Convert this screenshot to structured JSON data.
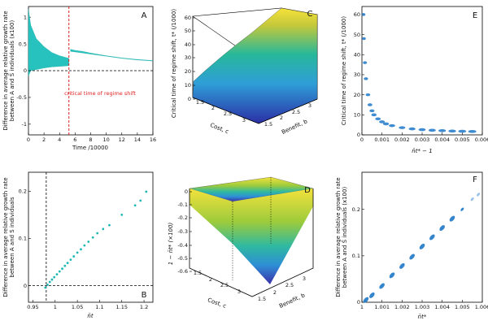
{
  "chart_data": [
    {
      "panel": "A",
      "type": "area",
      "title": "",
      "xlabel": "Time /10000",
      "ylabel": "Difference in average relative growth rate\nbetween A and S individuals (x100)",
      "xlim": [
        0,
        16
      ],
      "ylim": [
        -1.2,
        1.2
      ],
      "xticks": [
        "0",
        "2",
        "4",
        "6",
        "8",
        "10",
        "12",
        "14",
        "16"
      ],
      "yticks": [
        "-1",
        "-0.5",
        "0",
        "0.5",
        "1"
      ],
      "baseline": 0,
      "regime_shift_time": 5.2,
      "annotation": "critical time of regime shift",
      "series": [
        {
          "name": "band_upper",
          "x": [
            0,
            0.3,
            1,
            2,
            3,
            4,
            5,
            5.2,
            5.4,
            6,
            7,
            8,
            10,
            12,
            14,
            16
          ],
          "values": [
            1.15,
            0.85,
            0.6,
            0.45,
            0.34,
            0.28,
            0.24,
            0.23,
            0.4,
            0.38,
            0.36,
            0.33,
            0.28,
            0.24,
            0.21,
            0.19
          ]
        },
        {
          "name": "band_lower",
          "x": [
            0,
            0.3,
            1,
            2,
            3,
            4,
            5,
            5.2,
            5.4,
            6,
            7,
            8,
            10,
            12,
            14,
            16
          ],
          "values": [
            -0.1,
            0.0,
            0.02,
            0.05,
            0.07,
            0.08,
            0.09,
            0.1,
            0.36,
            0.35,
            0.33,
            0.31,
            0.27,
            0.23,
            0.2,
            0.18
          ]
        }
      ]
    },
    {
      "panel": "B",
      "type": "scatter",
      "xlabel": "n̄t",
      "ylabel": "Difference in average relative growth rate\nbetween A and S individuals",
      "xlim": [
        0.94,
        1.22
      ],
      "ylim": [
        -0.035,
        0.24
      ],
      "xticks": [
        "0.95",
        "1",
        "1.05",
        "1.1",
        "1.15",
        "1.2"
      ],
      "yticks": [
        "0",
        "0.1",
        "0.2"
      ],
      "vline_x": 0.98,
      "hline_y": 0,
      "x": [
        0.978,
        0.983,
        0.988,
        0.993,
        0.998,
        1.004,
        1.01,
        1.016,
        1.022,
        1.028,
        1.035,
        1.042,
        1.05,
        1.058,
        1.066,
        1.075,
        1.085,
        1.095,
        1.108,
        1.122,
        1.15,
        1.18,
        1.192,
        1.205
      ],
      "values": [
        -0.004,
        0.002,
        0.008,
        0.013,
        0.018,
        0.024,
        0.03,
        0.036,
        0.042,
        0.048,
        0.055,
        0.062,
        0.07,
        0.077,
        0.085,
        0.093,
        0.102,
        0.111,
        0.12,
        0.128,
        0.15,
        0.17,
        0.18,
        0.199
      ]
    },
    {
      "panel": "C",
      "type": "surface3d",
      "xlabel": "Cost, c",
      "ylabel": "Benefit, b",
      "zlabel": "Critical time of regime shift, t* (/1000)",
      "xticks": [
        "1.5",
        "2",
        "2.5",
        "3"
      ],
      "yticks": [
        "1.5",
        "2",
        "2.5",
        "3"
      ],
      "zticks": [
        "0",
        "10",
        "20",
        "30",
        "40",
        "50",
        "60"
      ],
      "zlim": [
        0,
        60
      ]
    },
    {
      "panel": "D",
      "type": "surface3d",
      "xlabel": "Cost, c",
      "ylabel": "Benefit, b",
      "zlabel": "1 − n̄t* (×100)",
      "xticks": [
        "1.5",
        "2",
        "2.5",
        "3"
      ],
      "yticks": [
        "1.5",
        "2",
        "2.5",
        "3"
      ],
      "zticks": [
        "0",
        "-0.1",
        "-0.2",
        "-0.3",
        "-0.4",
        "-0.5",
        "-0.6"
      ],
      "zlim": [
        -0.6,
        0
      ]
    },
    {
      "panel": "E",
      "type": "scatter",
      "xlabel": "n̄t* − 1",
      "ylabel": "Critical time of regime shift, t* (/1000)",
      "xlim": [
        0,
        0.006
      ],
      "ylim": [
        0,
        64
      ],
      "xticks": [
        "0",
        "0.001",
        "0.002",
        "0.003",
        "0.004",
        "0.005",
        "0.006"
      ],
      "yticks": [
        "0",
        "10",
        "20",
        "30",
        "40",
        "50",
        "60"
      ],
      "x": [
        8e-05,
        0.0001,
        0.00015,
        0.0002,
        0.0003,
        0.0004,
        0.0005,
        0.0006,
        0.0008,
        0.001,
        0.0012,
        0.0015,
        0.002,
        0.0025,
        0.003,
        0.0035,
        0.004,
        0.0045,
        0.005,
        0.0055
      ],
      "values": [
        60,
        48,
        36,
        28,
        20,
        15,
        12,
        10,
        8,
        6.5,
        5.5,
        4.6,
        3.6,
        3.0,
        2.6,
        2.3,
        2.1,
        1.9,
        1.8,
        1.7
      ]
    },
    {
      "panel": "F",
      "type": "scatter",
      "xlabel": "n̄t*",
      "ylabel": "Difference in average relative growth rate\nbetween A and S individuals (x100)",
      "xlim": [
        1,
        1.006
      ],
      "ylim": [
        0,
        0.28
      ],
      "xticks": [
        "1",
        "1.001",
        "1.002",
        "1.003",
        "1.004",
        "1.005",
        "1.006"
      ],
      "yticks": [
        "0",
        "0.1",
        "0.2"
      ],
      "x": [
        1.0002,
        1.0005,
        1.001,
        1.0015,
        1.002,
        1.0025,
        1.003,
        1.0035,
        1.004,
        1.0045,
        1.005,
        1.0055,
        1.0058
      ],
      "values": [
        0.005,
        0.015,
        0.035,
        0.058,
        0.078,
        0.098,
        0.12,
        0.14,
        0.16,
        0.18,
        0.2,
        0.222,
        0.232
      ]
    }
  ]
}
